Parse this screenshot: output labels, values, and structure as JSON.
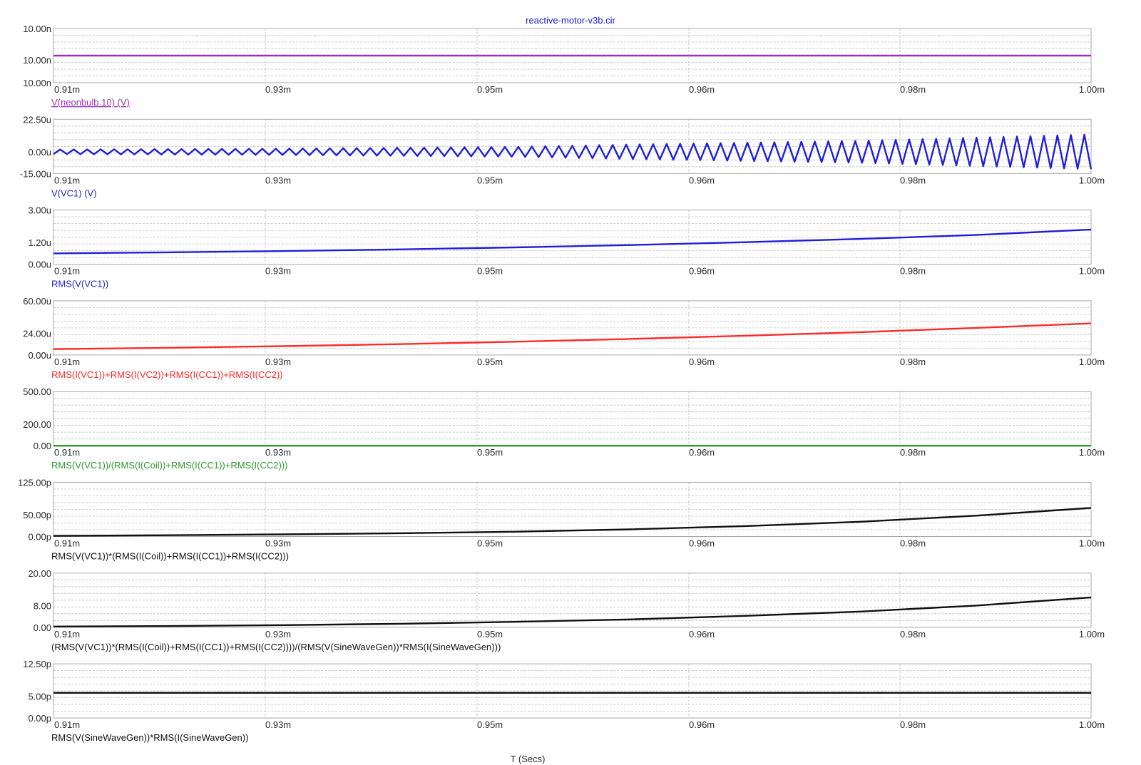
{
  "title": "reactive-motor-v3b.cir",
  "x_axis_label": "T (Secs)",
  "x_tick_labels": [
    "0.91m",
    "0.93m",
    "0.95m",
    "0.96m",
    "0.98m",
    "1.00m"
  ],
  "colors": {
    "frame": "#a8a8a8",
    "grid": "#bdbdbd",
    "title": "#1a1ad6",
    "axis_text": "#2a2a2a"
  },
  "chart_data": [
    {
      "type": "line",
      "series": [
        {
          "name": "V(neonbulb.10) (V)",
          "color": "#9b30b8",
          "x": [
            0.91,
            1.0
          ],
          "y": [
            10.0,
            10.0
          ]
        }
      ],
      "y_tick_labels": [
        "10.00n",
        "10.00n",
        "10.00n"
      ],
      "y_ticks": [
        10.01,
        10.0,
        9.99
      ],
      "ylim": [
        9.99,
        10.01
      ],
      "y_unit": "n",
      "xlim": [
        0.91,
        1.0
      ],
      "x_unit": "m",
      "grid": true,
      "label_style": "underline"
    },
    {
      "type": "line",
      "series": [
        {
          "name": "V(VC1) (V)",
          "color": "#1f1fd9",
          "waveform": "triangle",
          "cycles": 77,
          "x": [
            0.91,
            0.93,
            0.95,
            0.96,
            0.98,
            1.0
          ],
          "amplitude": [
            1.6,
            2.2,
            3.4,
            5.0,
            7.6,
            12.0
          ]
        }
      ],
      "y_tick_labels": [
        "22.50u",
        "0.00u",
        "-15.00u"
      ],
      "y_ticks": [
        22.5,
        0.0,
        -15.0
      ],
      "ylim": [
        -15.0,
        22.5
      ],
      "y_unit": "u",
      "xlim": [
        0.91,
        1.0
      ],
      "x_unit": "m",
      "grid": true
    },
    {
      "type": "line",
      "series": [
        {
          "name": "RMS(V(VC1))",
          "color": "#1f1fd9",
          "x": [
            0.91,
            0.92,
            0.93,
            0.94,
            0.95,
            0.96,
            0.97,
            0.98,
            0.99,
            1.0
          ],
          "y": [
            0.6,
            0.66,
            0.73,
            0.82,
            0.93,
            1.06,
            1.22,
            1.4,
            1.62,
            1.92
          ]
        }
      ],
      "y_tick_labels": [
        "3.00u",
        "1.20u",
        "0.00u"
      ],
      "y_ticks": [
        3.0,
        1.2,
        0.0
      ],
      "ylim": [
        0.0,
        3.0
      ],
      "y_unit": "u",
      "xlim": [
        0.91,
        1.0
      ],
      "x_unit": "m",
      "grid": true
    },
    {
      "type": "line",
      "series": [
        {
          "name": "RMS(I(VC1))+RMS(I(VC2))+RMS(I(CC1))+RMS(I(CC2))",
          "color": "#ff2a2a",
          "x": [
            0.91,
            0.92,
            0.93,
            0.94,
            0.95,
            0.96,
            0.97,
            0.98,
            0.99,
            1.0
          ],
          "y": [
            6.5,
            8.0,
            9.8,
            12.0,
            14.7,
            17.8,
            21.3,
            25.3,
            30.0,
            35.0
          ]
        }
      ],
      "y_tick_labels": [
        "60.00u",
        "24.00u",
        "0.00u"
      ],
      "y_ticks": [
        60.0,
        24.0,
        0.0
      ],
      "ylim": [
        0.0,
        60.0
      ],
      "y_unit": "u",
      "xlim": [
        0.91,
        1.0
      ],
      "x_unit": "m",
      "grid": true
    },
    {
      "type": "line",
      "series": [
        {
          "name": "RMS(V(VC1))/(RMS(I(Coil))+RMS(I(CC1))+RMS(I(CC2)))",
          "color": "#2a9a2a",
          "x": [
            0.91,
            1.0
          ],
          "y": [
            0.0,
            0.0
          ]
        }
      ],
      "y_tick_labels": [
        "500.00",
        "200.00",
        "0.00"
      ],
      "y_ticks": [
        500.0,
        200.0,
        0.0
      ],
      "ylim": [
        0.0,
        500.0
      ],
      "y_unit": "",
      "xlim": [
        0.91,
        1.0
      ],
      "x_unit": "m",
      "grid": true
    },
    {
      "type": "line",
      "series": [
        {
          "name": "RMS(V(VC1))*(RMS(I(Coil))+RMS(I(CC1))+RMS(I(CC2)))",
          "color": "#111111",
          "x": [
            0.91,
            0.92,
            0.93,
            0.94,
            0.95,
            0.96,
            0.97,
            0.98,
            0.99,
            1.0
          ],
          "y": [
            1.5,
            3.0,
            5.0,
            7.5,
            11.0,
            16.5,
            24.0,
            34.0,
            48.0,
            66.0
          ]
        }
      ],
      "y_tick_labels": [
        "125.00p",
        "50.00p",
        "0.00p"
      ],
      "y_ticks": [
        125.0,
        50.0,
        0.0
      ],
      "ylim": [
        0.0,
        125.0
      ],
      "y_unit": "p",
      "xlim": [
        0.91,
        1.0
      ],
      "x_unit": "m",
      "grid": true
    },
    {
      "type": "line",
      "series": [
        {
          "name": "(RMS(V(VC1))*(RMS(I(Coil))+RMS(I(CC1))+RMS(I(CC2))))/(RMS(V(SineWaveGen))*RMS(I(SineWaveGen)))",
          "color": "#111111",
          "x": [
            0.91,
            0.92,
            0.93,
            0.94,
            0.95,
            0.96,
            0.97,
            0.98,
            0.99,
            1.0
          ],
          "y": [
            0.25,
            0.45,
            0.8,
            1.3,
            2.0,
            2.9,
            4.2,
            5.8,
            8.0,
            11.0
          ]
        }
      ],
      "y_tick_labels": [
        "20.00",
        "8.00",
        "0.00"
      ],
      "y_ticks": [
        20.0,
        8.0,
        0.0
      ],
      "ylim": [
        0.0,
        20.0
      ],
      "y_unit": "",
      "xlim": [
        0.91,
        1.0
      ],
      "x_unit": "m",
      "grid": true
    },
    {
      "type": "line",
      "series": [
        {
          "name": "RMS(V(SineWaveGen))*RMS(I(SineWaveGen))",
          "color": "#111111",
          "x": [
            0.91,
            1.0
          ],
          "y": [
            5.8,
            5.8
          ]
        }
      ],
      "y_tick_labels": [
        "12.50p",
        "5.00p",
        "0.00p"
      ],
      "y_ticks": [
        12.5,
        5.0,
        0.0
      ],
      "ylim": [
        0.0,
        12.5
      ],
      "y_unit": "p",
      "xlim": [
        0.91,
        1.0
      ],
      "x_unit": "m",
      "grid": true
    }
  ]
}
